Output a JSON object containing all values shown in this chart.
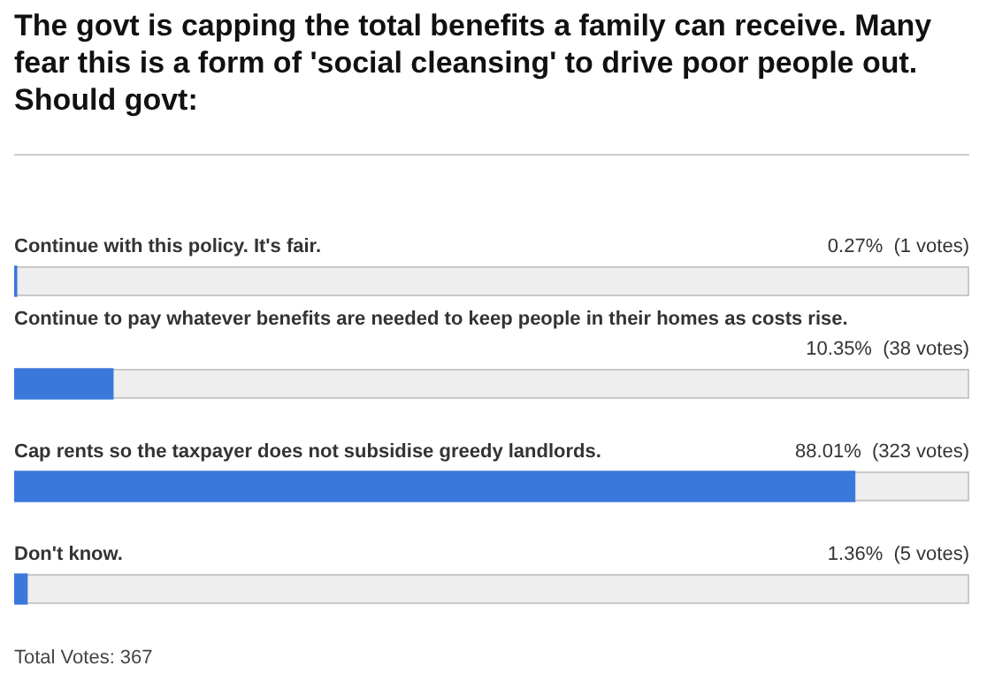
{
  "chart_data": {
    "type": "bar",
    "orientation": "horizontal",
    "title": "The govt is capping the total benefits a family can receive. Many fear this is a form of 'social cleansing' to drive poor people out. Should govt:",
    "categories": [
      "Continue with this policy. It's fair.",
      "Continue to pay whatever benefits are needed to keep people in their homes as costs rise.",
      "Cap rents so the taxpayer does not subsidise greedy landlords.",
      "Don't know."
    ],
    "values": [
      0.27,
      10.35,
      88.01,
      1.36
    ],
    "value_labels": [
      "0.27%  (1 votes)",
      "10.35%  (38 votes)",
      "88.01%  (323 votes)",
      "1.36%  (5 votes)"
    ],
    "color": "#3b78dc",
    "xlim": [
      0,
      100
    ],
    "tick_labels": false,
    "annotations": [
      "Total Votes: 367"
    ]
  }
}
